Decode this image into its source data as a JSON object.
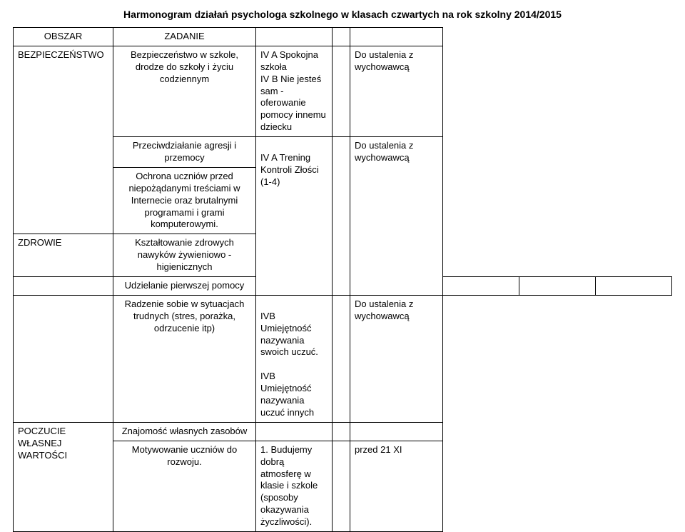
{
  "title": "Harmonogram działań psychologa szkolnego w klasach czwartych na rok szkolny 2014/2015",
  "hdr": {
    "obszar": "OBSZAR",
    "zadanie": "ZADANIE"
  },
  "r1": {
    "obszar": "BEZPIECZEŃSTWO",
    "zadanie": "Bezpieczeństwo w szkole, drodze do szkoły i życiu codziennym",
    "desc_line1": "IV A Spokojna szkoła",
    "desc_line2": "IV B Nie jesteś sam - oferowanie pomocy innemu dziecku",
    "term": "Do ustalenia z wychowawcą"
  },
  "r2": {
    "zadanie": "Przeciwdziałanie agresji i przemocy",
    "desc": "IV A Trening Kontroli Złości (1-4)",
    "term": "Do ustalenia z wychowawcą"
  },
  "r3": {
    "zadanie": "Ochrona uczniów przed niepożądanymi treściami w Internecie oraz brutalnymi programami i grami komputerowymi."
  },
  "r4": {
    "obszar": "ZDROWIE",
    "zadanie": "Kształtowanie zdrowych nawyków żywieniowo - higienicznych"
  },
  "r5": {
    "zadanie": "Udzielanie pierwszej pomocy"
  },
  "r6": {
    "zadanie": "Radzenie sobie w sytuacjach trudnych (stres, porażka, odrzucenie itp)",
    "desc_line1": "IVB Umiejętność nazywania swoich uczuć.",
    "desc_line2": "IVB Umiejętność nazywania uczuć innych",
    "term": "Do ustalenia z wychowawcą"
  },
  "r7": {
    "obszar": "POCZUCIE WŁASNEJ WARTOŚCI",
    "zadanie": "Znajomość własnych zasobów"
  },
  "r8": {
    "zadanie": "Motywowanie uczniów do rozwoju.",
    "desc": "1. Budujemy dobrą atmosferę w klasie i szkole (sposoby okazywania życzliwości).",
    "term": "przed 21 XI"
  }
}
